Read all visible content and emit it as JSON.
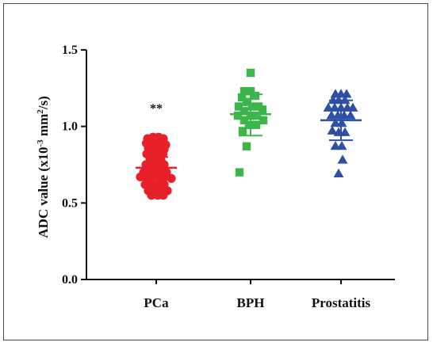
{
  "chart_data": {
    "type": "scatter",
    "ylabel_parts": {
      "prefix": "ADC value (x10",
      "exp1": "-3",
      "mid": " mm",
      "exp2": "2",
      "suffix": "/s)"
    },
    "ylim": [
      0.0,
      1.5
    ],
    "yticks": [
      "0.0",
      "0.5",
      "1.0",
      "1.5"
    ],
    "categories": [
      "PCa",
      "BPH",
      "Prostatitis"
    ],
    "colors": {
      "PCa": "#e8202a",
      "BPH": "#3cb54a",
      "Prostatitis": "#2e4fa3"
    },
    "markers": {
      "PCa": "circle",
      "BPH": "square",
      "Prostatitis": "triangle"
    },
    "annotation": "**",
    "series": [
      {
        "name": "PCa",
        "mean": 0.73,
        "sd_low": 0.66,
        "sd_high": 0.8,
        "points": [
          {
            "x": -0.22,
            "y": 0.92
          },
          {
            "x": -0.08,
            "y": 0.93
          },
          {
            "x": 0.06,
            "y": 0.93
          },
          {
            "x": 0.18,
            "y": 0.92
          },
          {
            "x": -0.25,
            "y": 0.89
          },
          {
            "x": -0.12,
            "y": 0.9
          },
          {
            "x": 0.0,
            "y": 0.9
          },
          {
            "x": 0.13,
            "y": 0.89
          },
          {
            "x": 0.24,
            "y": 0.88
          },
          {
            "x": -0.2,
            "y": 0.86
          },
          {
            "x": -0.06,
            "y": 0.86
          },
          {
            "x": 0.08,
            "y": 0.86
          },
          {
            "x": 0.2,
            "y": 0.85
          },
          {
            "x": -0.24,
            "y": 0.82
          },
          {
            "x": -0.1,
            "y": 0.82
          },
          {
            "x": 0.04,
            "y": 0.83
          },
          {
            "x": 0.17,
            "y": 0.82
          },
          {
            "x": -0.16,
            "y": 0.78
          },
          {
            "x": -0.02,
            "y": 0.79
          },
          {
            "x": 0.12,
            "y": 0.78
          },
          {
            "x": -0.26,
            "y": 0.75
          },
          {
            "x": -0.1,
            "y": 0.75
          },
          {
            "x": 0.05,
            "y": 0.74
          },
          {
            "x": 0.2,
            "y": 0.75
          },
          {
            "x": -0.32,
            "y": 0.7
          },
          {
            "x": -0.18,
            "y": 0.71
          },
          {
            "x": -0.04,
            "y": 0.7
          },
          {
            "x": 0.1,
            "y": 0.71
          },
          {
            "x": 0.26,
            "y": 0.7
          },
          {
            "x": -0.4,
            "y": 0.67
          },
          {
            "x": -0.24,
            "y": 0.66
          },
          {
            "x": -0.08,
            "y": 0.67
          },
          {
            "x": 0.06,
            "y": 0.66
          },
          {
            "x": 0.22,
            "y": 0.67
          },
          {
            "x": 0.38,
            "y": 0.66
          },
          {
            "x": -0.28,
            "y": 0.62
          },
          {
            "x": -0.12,
            "y": 0.62
          },
          {
            "x": 0.04,
            "y": 0.62
          },
          {
            "x": 0.2,
            "y": 0.62
          },
          {
            "x": -0.2,
            "y": 0.58
          },
          {
            "x": -0.04,
            "y": 0.58
          },
          {
            "x": 0.12,
            "y": 0.58
          },
          {
            "x": 0.28,
            "y": 0.58
          },
          {
            "x": -0.12,
            "y": 0.55
          },
          {
            "x": 0.04,
            "y": 0.55
          },
          {
            "x": 0.18,
            "y": 0.55
          }
        ]
      },
      {
        "name": "BPH",
        "mean": 1.08,
        "sd_low": 0.94,
        "sd_high": 1.21,
        "points": [
          {
            "x": 0.0,
            "y": 1.35
          },
          {
            "x": -0.16,
            "y": 1.23
          },
          {
            "x": 0.0,
            "y": 1.23
          },
          {
            "x": -0.22,
            "y": 1.19
          },
          {
            "x": 0.12,
            "y": 1.2
          },
          {
            "x": -0.1,
            "y": 1.16
          },
          {
            "x": -0.3,
            "y": 1.13
          },
          {
            "x": 0.04,
            "y": 1.13
          },
          {
            "x": 0.2,
            "y": 1.13
          },
          {
            "x": -0.16,
            "y": 1.1
          },
          {
            "x": 0.3,
            "y": 1.11
          },
          {
            "x": -0.32,
            "y": 1.07
          },
          {
            "x": 0.0,
            "y": 1.07
          },
          {
            "x": 0.16,
            "y": 1.07
          },
          {
            "x": -0.16,
            "y": 1.04
          },
          {
            "x": 0.32,
            "y": 1.04
          },
          {
            "x": -0.04,
            "y": 1.01
          },
          {
            "x": 0.14,
            "y": 1.01
          },
          {
            "x": -0.2,
            "y": 0.97
          },
          {
            "x": -0.1,
            "y": 0.87
          },
          {
            "x": -0.28,
            "y": 0.7
          }
        ]
      },
      {
        "name": "Prostatitis",
        "mean": 1.04,
        "sd_low": 0.91,
        "sd_high": 1.17,
        "points": [
          {
            "x": -0.14,
            "y": 1.21
          },
          {
            "x": 0.0,
            "y": 1.21
          },
          {
            "x": 0.14,
            "y": 1.21
          },
          {
            "x": -0.2,
            "y": 1.17
          },
          {
            "x": -0.06,
            "y": 1.17
          },
          {
            "x": 0.1,
            "y": 1.17
          },
          {
            "x": -0.32,
            "y": 1.12
          },
          {
            "x": -0.16,
            "y": 1.12
          },
          {
            "x": 0.0,
            "y": 1.12
          },
          {
            "x": 0.16,
            "y": 1.12
          },
          {
            "x": 0.3,
            "y": 1.12
          },
          {
            "x": -0.24,
            "y": 1.07
          },
          {
            "x": -0.08,
            "y": 1.07
          },
          {
            "x": 0.08,
            "y": 1.07
          },
          {
            "x": 0.24,
            "y": 1.07
          },
          {
            "x": -0.14,
            "y": 1.02
          },
          {
            "x": 0.02,
            "y": 1.02
          },
          {
            "x": -0.22,
            "y": 0.97
          },
          {
            "x": -0.06,
            "y": 0.96
          },
          {
            "x": 0.1,
            "y": 0.96
          },
          {
            "x": -0.14,
            "y": 0.87
          },
          {
            "x": 0.02,
            "y": 0.87
          },
          {
            "x": 0.04,
            "y": 0.78
          },
          {
            "x": -0.06,
            "y": 0.69
          }
        ]
      }
    ]
  }
}
